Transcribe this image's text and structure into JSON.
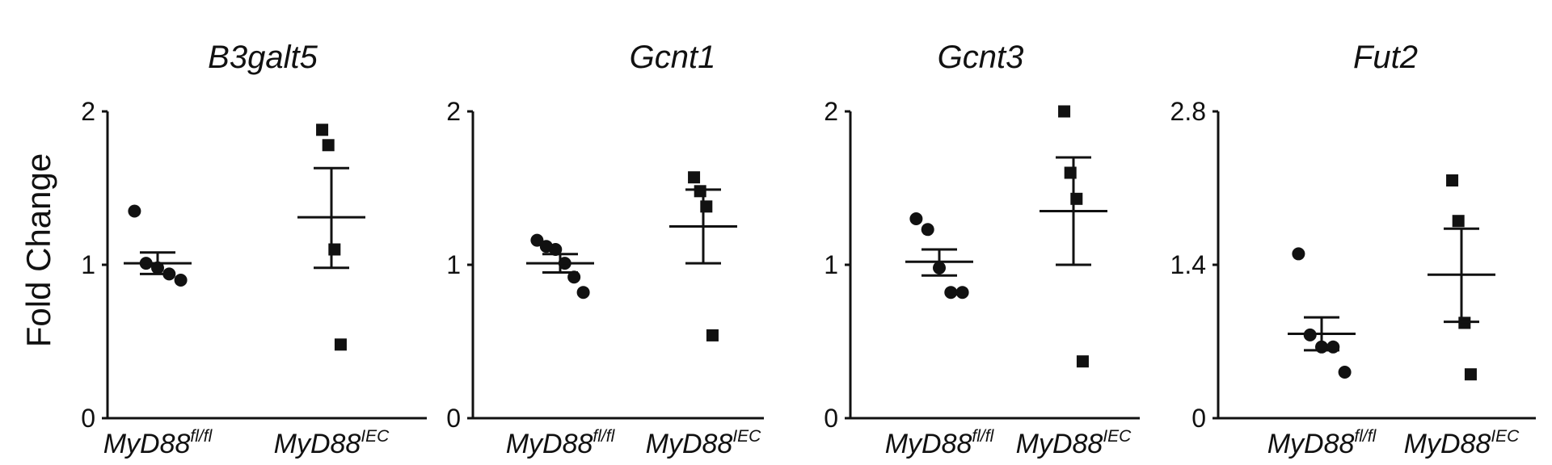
{
  "chart_data": {
    "type": "scatter",
    "ylabel": "Fold Change",
    "categories": [
      {
        "base": "MyD88",
        "sup": "fl/fl",
        "marker": "circle"
      },
      {
        "base": "MyD88",
        "sup": "IEC",
        "marker": "square"
      }
    ],
    "panels": [
      {
        "title": "B3galt5",
        "ylim": [
          0,
          2
        ],
        "yticks": [
          "0",
          "1",
          "2"
        ],
        "series": [
          {
            "points": [
              1.35,
              1.01,
              0.98,
              0.94,
              0.9
            ],
            "mean": 1.01,
            "sem": [
              0.94,
              1.08
            ]
          },
          {
            "points": [
              1.88,
              1.78,
              1.1,
              0.48
            ],
            "mean": 1.31,
            "sem": [
              0.98,
              1.63
            ]
          }
        ]
      },
      {
        "title": "Gcnt1",
        "ylim": [
          0,
          2
        ],
        "yticks": [
          "0",
          "1",
          "2"
        ],
        "series": [
          {
            "points": [
              1.16,
              1.12,
              1.1,
              1.01,
              0.92,
              0.82
            ],
            "mean": 1.01,
            "sem": [
              0.95,
              1.07
            ]
          },
          {
            "points": [
              1.57,
              1.48,
              1.38,
              0.54
            ],
            "mean": 1.25,
            "sem": [
              1.01,
              1.49
            ]
          }
        ]
      },
      {
        "title": "Gcnt3",
        "ylim": [
          0,
          2
        ],
        "yticks": [
          "0",
          "1",
          "2"
        ],
        "series": [
          {
            "points": [
              1.3,
              1.23,
              0.98,
              0.82,
              0.82
            ],
            "mean": 1.02,
            "sem": [
              0.93,
              1.1
            ]
          },
          {
            "points": [
              2.0,
              1.6,
              1.43,
              0.37
            ],
            "mean": 1.35,
            "sem": [
              1.0,
              1.7
            ]
          }
        ]
      },
      {
        "title": "Fut2",
        "ylim": [
          0,
          2.8
        ],
        "yticks": [
          "0",
          "1.4",
          "2.8"
        ],
        "series": [
          {
            "points": [
              1.5,
              0.76,
              0.65,
              0.65,
              0.42
            ],
            "mean": 0.77,
            "sem": [
              0.62,
              0.92
            ]
          },
          {
            "points": [
              2.17,
              1.8,
              0.87,
              0.4
            ],
            "mean": 1.31,
            "sem": [
              0.88,
              1.73
            ]
          }
        ]
      }
    ]
  }
}
